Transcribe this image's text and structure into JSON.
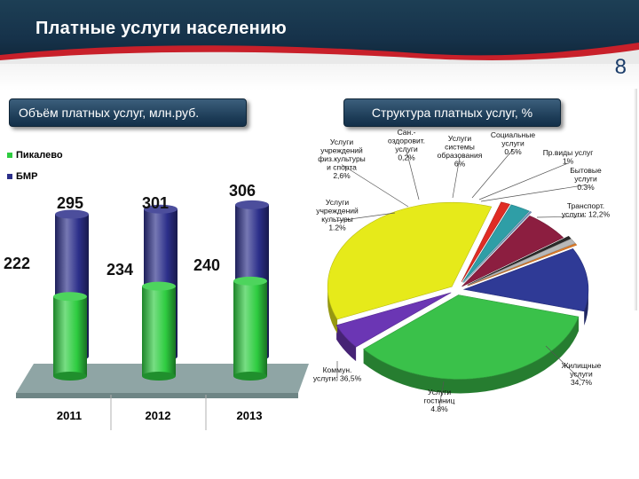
{
  "page": {
    "title": "Платные услуги населению",
    "slide_number": "8",
    "left_panel_title": "Объём платных услуг, млн.руб.",
    "right_panel_title": "Структура платных услуг, %"
  },
  "colors": {
    "header": "#1d3f55",
    "pikalevo": "#2ecc40",
    "bmr": "#2c2f8a",
    "floor": "#8fa5a5"
  },
  "chart_data": [
    {
      "type": "bar",
      "title": "Объём платных услуг, млн.руб.",
      "categories": [
        "2011",
        "2012",
        "2013"
      ],
      "series": [
        {
          "name": "Пикалево",
          "values": [
            222,
            234,
            240
          ],
          "labels": [
            "222",
            "234",
            "240"
          ],
          "color": "#2ecc40"
        },
        {
          "name": "БМР",
          "values": [
            295,
            301,
            306
          ],
          "labels": [
            "295",
            "301",
            "306"
          ],
          "color": "#2c2f8a"
        }
      ],
      "legend": "top-left",
      "grid": false
    },
    {
      "type": "pie",
      "title": "Структура платных услуг, %",
      "slices": [
        {
          "name": "Жилищные услуги",
          "label": "Жилищные\nуслуги\n34,7%",
          "value": 34.7,
          "color": "#3ac14a"
        },
        {
          "name": "Услуги гостиниц",
          "label": "Услуги\nгостиниц\n4.8%",
          "value": 4.8,
          "color": "#6b36b4"
        },
        {
          "name": "Коммун. услуги",
          "label": "Коммун.\nуслуги: 36,5%",
          "value": 36.5,
          "color": "#e6ea1a"
        },
        {
          "name": "Услуги учреждений культуры",
          "label": "Услуги\nучреждений\nкультуры\n1.2%",
          "value": 1.2,
          "color": "#e02c24"
        },
        {
          "name": "Услуги учреждений физ.культуры и спорта",
          "label": "Услуги\nучреждений\nфиз.культуры\nи спорта\n2,6%",
          "value": 2.6,
          "color": "#2f9ea6"
        },
        {
          "name": "Сан.-оздоровит. услуги",
          "label": "Сан.-\nоздоровит.\nуслуги\n0,2%",
          "value": 0.2,
          "color": "#7a9bc8"
        },
        {
          "name": "Услуги системы образования",
          "label": "Услуги\nсистемы\nобразования\n6%",
          "value": 6.0,
          "color": "#8c1e40"
        },
        {
          "name": "Социальные услуги",
          "label": "Социальные\nуслуги\n0.5%",
          "value": 0.5,
          "color": "#2a2a2a"
        },
        {
          "name": "Пр.виды услуг",
          "label": "Пр.виды услуг\n1%",
          "value": 1.0,
          "color": "#b8b8b8"
        },
        {
          "name": "Бытовые услуги",
          "label": "Бытовые\nуслуги\n0.3%",
          "value": 0.3,
          "color": "#e8812a"
        },
        {
          "name": "Транспорт. услуги",
          "label": "Транспорт.\nуслуги: 12,2%",
          "value": 12.2,
          "color": "#2f3a96"
        }
      ]
    }
  ]
}
